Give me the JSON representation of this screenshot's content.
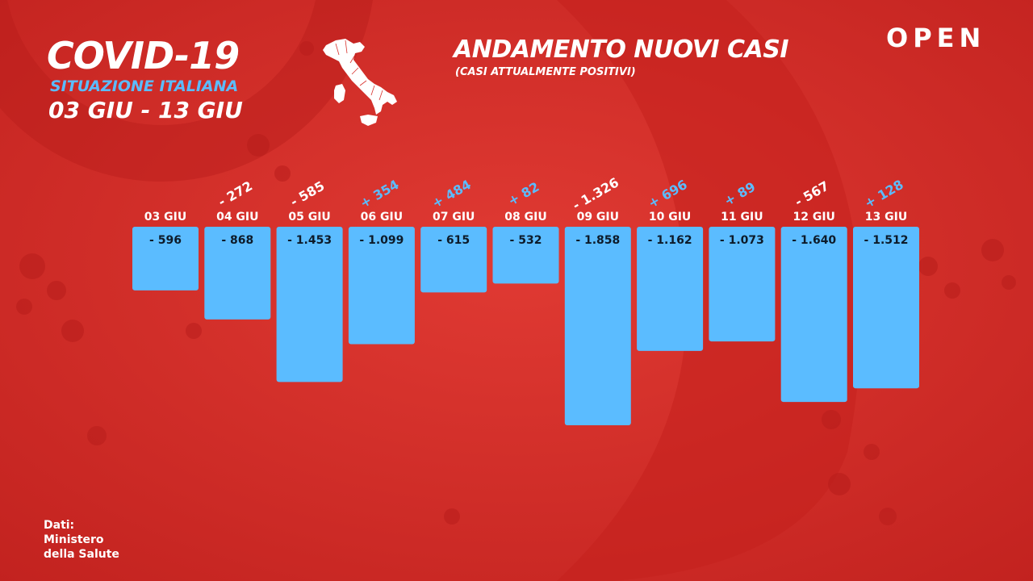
{
  "header": {
    "title": "COVID-19",
    "subtitle": "SITUAZIONE ITALIANA",
    "date_range": "03 GIU - 13 GIU"
  },
  "chart_header": {
    "title": "ANDAMENTO NUOVI CASI",
    "subtitle": "(CASI ATTUALMENTE POSITIVI)"
  },
  "brand": {
    "logo_text": "OPEN"
  },
  "source": {
    "lines": [
      "Dati:",
      "Ministero",
      "della Salute"
    ]
  },
  "colors": {
    "background": "#d8302c",
    "bar": "#5bbcff",
    "positive_delta": "#5bbcff",
    "negative_delta": "#ffffff"
  },
  "icons": {
    "map": "italy-map-icon"
  },
  "chart_data": {
    "type": "bar",
    "categories": [
      "03 GIU",
      "04 GIU",
      "05 GIU",
      "06 GIU",
      "07 GIU",
      "08 GIU",
      "09 GIU",
      "10 GIU",
      "11 GIU",
      "12 GIU",
      "13 GIU"
    ],
    "values": [
      -596,
      -868,
      -1453,
      -1099,
      -615,
      -532,
      -1858,
      -1162,
      -1073,
      -1640,
      -1512
    ],
    "value_labels": [
      "- 596",
      "- 868",
      "- 1.453",
      "- 1.099",
      "- 615",
      "- 532",
      "- 1.858",
      "- 1.162",
      "- 1.073",
      "- 1.640",
      "- 1.512"
    ],
    "deltas": [
      null,
      -272,
      -585,
      354,
      484,
      82,
      -1326,
      696,
      89,
      -567,
      128
    ],
    "delta_labels": [
      "",
      "- 272",
      "- 585",
      "+ 354",
      "+ 484",
      "+ 82",
      "- 1.326",
      "+ 696",
      "+ 89",
      "- 567",
      "+ 128"
    ],
    "ylim": [
      -1858,
      0
    ]
  }
}
